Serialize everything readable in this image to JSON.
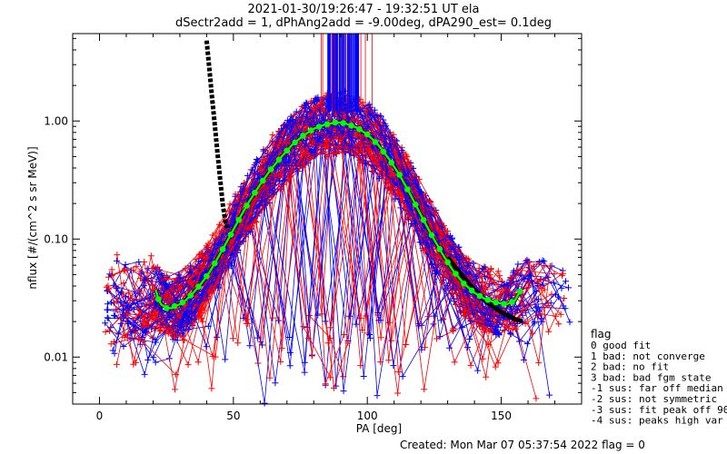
{
  "chart_data": {
    "type": "scatter",
    "title_line1": "2021-01-30/19:26:47 - 19:32:51 UT ela",
    "title_line2": "dSectr2add = 1, dPhAng2add = -9.00deg, dPA290_est=   0.1deg",
    "xlabel": "PA [deg]",
    "ylabel": "nflux [#/(cm^2 s sr MeV)]",
    "xlim": [
      -10,
      180
    ],
    "ylim": [
      0.004,
      5.5
    ],
    "yscale": "log",
    "x_ticks": [
      0,
      50,
      100,
      150
    ],
    "x_tick_labels": [
      "0",
      "50",
      "100",
      "150"
    ],
    "y_ticks": [
      0.01,
      0.1,
      1.0
    ],
    "y_tick_labels": [
      "0.01",
      "0.10",
      "1.00"
    ],
    "fit_curve": {
      "color": "#00ff00",
      "x": [
        21,
        22,
        23,
        24,
        25,
        26,
        27,
        28,
        30,
        32,
        35,
        38,
        41,
        44,
        47,
        50,
        53,
        56,
        60,
        64,
        68,
        72,
        76,
        80,
        84,
        88,
        90,
        92,
        96,
        100,
        104,
        108,
        112,
        116,
        120,
        124,
        128,
        132,
        136,
        140,
        144,
        148,
        152,
        155,
        157
      ],
      "y": [
        0.037,
        0.031,
        0.028,
        0.027,
        0.026,
        0.026,
        0.026,
        0.027,
        0.028,
        0.03,
        0.035,
        0.042,
        0.052,
        0.068,
        0.09,
        0.12,
        0.16,
        0.21,
        0.29,
        0.39,
        0.5,
        0.63,
        0.75,
        0.86,
        0.93,
        0.97,
        0.97,
        0.95,
        0.88,
        0.77,
        0.63,
        0.48,
        0.35,
        0.24,
        0.16,
        0.108,
        0.075,
        0.054,
        0.042,
        0.035,
        0.031,
        0.029,
        0.028,
        0.03,
        0.036
      ]
    },
    "black_curve": {
      "color": "#000000",
      "x": [
        40,
        41,
        42,
        43,
        44,
        45,
        46,
        47,
        48
      ],
      "y": [
        4.8,
        2.8,
        1.6,
        0.95,
        0.55,
        0.33,
        0.2,
        0.14,
        0.12
      ]
    },
    "black_curve_right": {
      "x": [
        130,
        135,
        140,
        145,
        150,
        155,
        158
      ],
      "y": [
        0.07,
        0.05,
        0.037,
        0.029,
        0.024,
        0.021,
        0.02
      ]
    },
    "vertical_lines": {
      "blue_range": [
        85,
        97
      ],
      "red_range": [
        77,
        102
      ]
    },
    "series": [
      {
        "color": "#ff0000"
      },
      {
        "color": "#0000ff"
      }
    ],
    "legend": {
      "title": "flag",
      "entries": [
        " 0 good fit",
        " 1 bad: not converge",
        " 2 bad: no fit",
        " 3 bad: bad fgm state",
        "-1 sus: far off median",
        "-2 sus: not symmetric",
        "-3 sus: fit peak off 90",
        "-4 sus: peaks high var"
      ]
    },
    "footer": "Created: Mon Mar 07 05:37:54 2022   flag = 0"
  }
}
